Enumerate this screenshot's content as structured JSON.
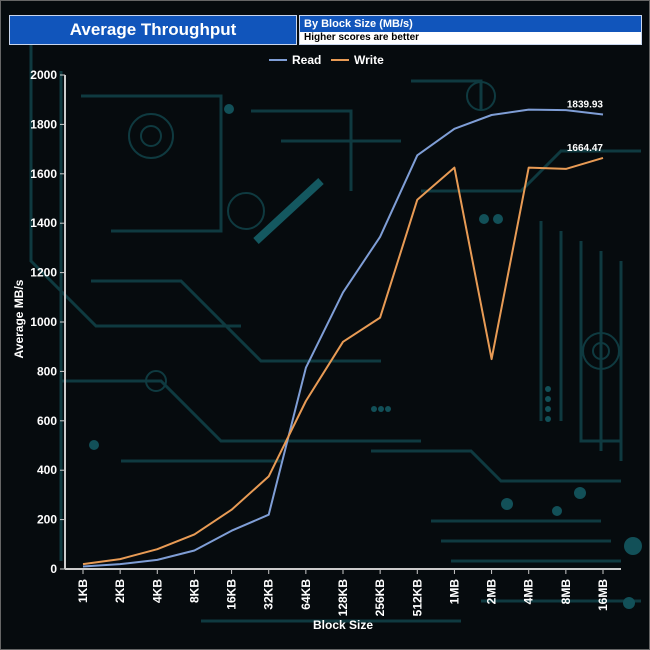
{
  "header": {
    "title": "Average Throughput",
    "subtitle": "By Block Size (MB/s)",
    "note": "Higher scores are better"
  },
  "colors": {
    "read": "#7f9ed6",
    "write": "#e89b55",
    "header_bg": "#1155bb",
    "axis": "#cccccc"
  },
  "chart_data": {
    "type": "line",
    "categories": [
      "1KB",
      "2KB",
      "4KB",
      "8KB",
      "16KB",
      "32KB",
      "64KB",
      "128KB",
      "256KB",
      "512KB",
      "1MB",
      "2MB",
      "4MB",
      "8MB",
      "16MB"
    ],
    "series": [
      {
        "name": "Read",
        "values": [
          10,
          20,
          37,
          75,
          155,
          220,
          815,
          1120,
          1345,
          1675,
          1782,
          1838,
          1860,
          1858,
          1839.93
        ]
      },
      {
        "name": "Write",
        "values": [
          20,
          40,
          80,
          140,
          240,
          375,
          680,
          920,
          1018,
          1495,
          1625,
          850,
          1625,
          1620,
          1664.47
        ]
      }
    ],
    "data_labels": [
      {
        "series": "Read",
        "index": 14,
        "text": "1839.93"
      },
      {
        "series": "Write",
        "index": 14,
        "text": "1664.47"
      }
    ],
    "xlabel": "Block Size",
    "ylabel": "Average MB/s",
    "ylim": [
      0,
      2000
    ],
    "yticks": [
      0,
      200,
      400,
      600,
      800,
      1000,
      1200,
      1400,
      1600,
      1800,
      2000
    ],
    "legend_position": "top-center",
    "grid": false
  }
}
